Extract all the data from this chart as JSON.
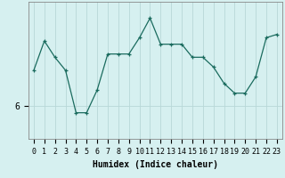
{
  "title": "",
  "xlabel": "Humidex (Indice chaleur)",
  "ylabel": "",
  "x": [
    0,
    1,
    2,
    3,
    4,
    5,
    6,
    7,
    8,
    9,
    10,
    11,
    12,
    13,
    14,
    15,
    16,
    17,
    18,
    19,
    20,
    21,
    22,
    23
  ],
  "y": [
    6.55,
    7.0,
    6.75,
    6.55,
    5.9,
    5.9,
    6.25,
    6.8,
    6.8,
    6.8,
    7.05,
    7.35,
    6.95,
    6.95,
    6.95,
    6.75,
    6.75,
    6.6,
    6.35,
    6.2,
    6.2,
    6.45,
    7.05,
    7.1
  ],
  "line_color": "#1a6b5e",
  "marker": "+",
  "bg_color": "#d6f0f0",
  "grid_color": "#b8d8d8",
  "ytick_label": "6",
  "ytick_val": 6.0,
  "ylim": [
    5.5,
    7.6
  ],
  "xlim": [
    -0.5,
    23.5
  ],
  "label_fontsize": 7,
  "tick_fontsize": 6
}
